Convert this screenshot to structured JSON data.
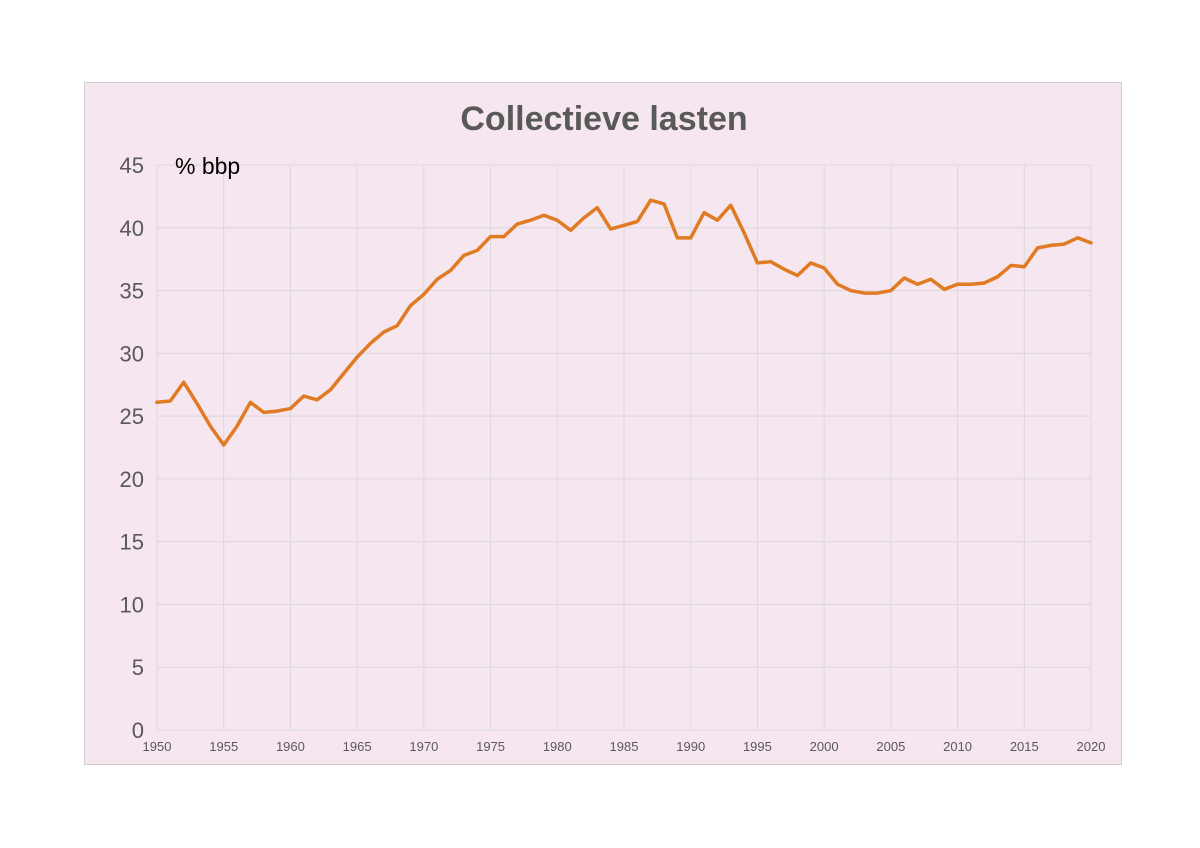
{
  "chart_data": {
    "type": "line",
    "title": "Collectieve lasten",
    "unit_label": "% bbp",
    "xlabel": "",
    "ylabel": "",
    "xlim": [
      1950,
      2020
    ],
    "ylim": [
      0,
      45
    ],
    "y_ticks": [
      "0",
      "5",
      "10",
      "15",
      "20",
      "25",
      "30",
      "35",
      "40",
      "45"
    ],
    "x_ticks": [
      "1950",
      "1955",
      "1960",
      "1965",
      "1970",
      "1975",
      "1980",
      "1985",
      "1990",
      "1995",
      "2000",
      "2005",
      "2010",
      "2015",
      "2020"
    ],
    "grid": true,
    "legend": "none",
    "series": [
      {
        "color": "#e07b24",
        "x": [
          1950,
          1951,
          1952,
          1953,
          1954,
          1955,
          1956,
          1957,
          1958,
          1959,
          1960,
          1961,
          1962,
          1963,
          1964,
          1965,
          1966,
          1967,
          1968,
          1969,
          1970,
          1971,
          1972,
          1973,
          1974,
          1975,
          1976,
          1977,
          1978,
          1979,
          1980,
          1981,
          1982,
          1983,
          1984,
          1985,
          1986,
          1987,
          1988,
          1989,
          1990,
          1991,
          1992,
          1993,
          1994,
          1995,
          1996,
          1997,
          1998,
          1999,
          2000,
          2001,
          2002,
          2003,
          2004,
          2005,
          2006,
          2007,
          2008,
          2009,
          2010,
          2011,
          2012,
          2013,
          2014,
          2015,
          2016,
          2017,
          2018,
          2019,
          2020
        ],
        "y": [
          26.1,
          26.2,
          27.7,
          26.0,
          24.2,
          22.7,
          24.2,
          26.1,
          25.3,
          25.4,
          25.6,
          26.6,
          26.3,
          27.1,
          28.4,
          29.7,
          30.8,
          31.7,
          32.2,
          33.8,
          34.7,
          35.9,
          36.6,
          37.8,
          38.2,
          39.3,
          39.3,
          40.3,
          40.6,
          41.0,
          40.6,
          39.8,
          40.8,
          41.6,
          39.9,
          40.2,
          40.5,
          42.2,
          41.9,
          39.2,
          39.2,
          41.2,
          40.6,
          41.8,
          39.6,
          37.2,
          37.3,
          36.7,
          36.2,
          37.2,
          36.8,
          35.5,
          35.0,
          34.8,
          34.8,
          35.0,
          36.0,
          35.5,
          35.9,
          35.1,
          35.5,
          35.5,
          35.6,
          36.1,
          37.0,
          36.9,
          38.4,
          38.6,
          38.7,
          39.2,
          38.8
        ]
      }
    ]
  }
}
